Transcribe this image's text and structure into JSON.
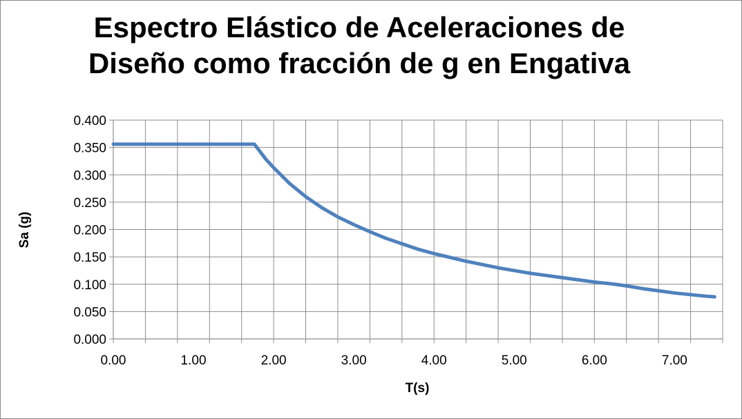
{
  "chart_data": {
    "type": "line",
    "title_lines": [
      "Espectro Elástico de Aceleraciones de",
      "Diseño como fracción de g en Engativa"
    ],
    "xlabel": "T(s)",
    "ylabel": "Sa (g)",
    "xlim": [
      0.0,
      7.6
    ],
    "ylim": [
      0.0,
      0.4
    ],
    "x_tick_labels": [
      "0.00",
      "1.00",
      "2.00",
      "3.00",
      "4.00",
      "5.00",
      "6.00",
      "7.00"
    ],
    "y_tick_labels": [
      "0.000",
      "0.050",
      "0.100",
      "0.150",
      "0.200",
      "0.250",
      "0.300",
      "0.350",
      "0.400"
    ],
    "grid": true,
    "legend": "none",
    "series": [
      {
        "color": "#4F81BD",
        "x": [
          0.0,
          0.5,
          1.0,
          1.5,
          1.76,
          1.9,
          2.0,
          2.2,
          2.4,
          2.6,
          2.8,
          3.0,
          3.2,
          3.4,
          3.6,
          3.8,
          4.0,
          4.2,
          4.4,
          4.6,
          4.8,
          5.0,
          5.2,
          5.4,
          5.6,
          5.8,
          6.0,
          6.2,
          6.4,
          6.6,
          6.8,
          7.0,
          7.2,
          7.4,
          7.5
        ],
        "y": [
          0.356,
          0.356,
          0.356,
          0.356,
          0.356,
          0.329,
          0.313,
          0.284,
          0.26,
          0.24,
          0.223,
          0.209,
          0.196,
          0.184,
          0.174,
          0.164,
          0.156,
          0.149,
          0.142,
          0.136,
          0.13,
          0.125,
          0.12,
          0.116,
          0.112,
          0.108,
          0.104,
          0.101,
          0.097,
          0.092,
          0.088,
          0.084,
          0.081,
          0.078,
          0.077
        ]
      }
    ]
  }
}
